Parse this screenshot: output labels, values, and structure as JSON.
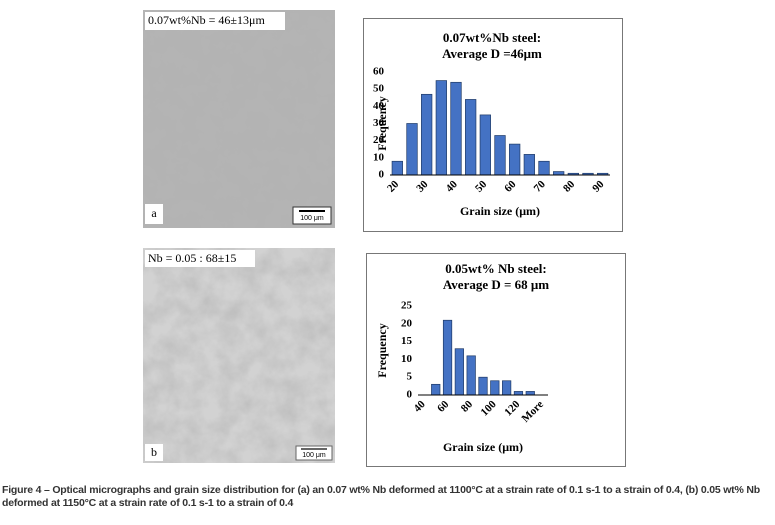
{
  "micrographs": [
    {
      "label": "0.07wt%Nb = 46±13μm",
      "panel": "a",
      "scale": "100 μm"
    },
    {
      "label": "Nb = 0.05 : 68±15",
      "panel": "b",
      "scale": "100 μm"
    }
  ],
  "chart_data": [
    {
      "type": "bar",
      "title": "0.07wt%Nb steel:",
      "subtitle": "Average D =46μm",
      "x_label": "Grain size (μm)",
      "y_label": "Frequency",
      "categories": [
        "20",
        null,
        "30",
        null,
        "40",
        null,
        "50",
        null,
        "60",
        null,
        "70",
        null,
        "80",
        null,
        "90"
      ],
      "values": [
        8,
        30,
        47,
        55,
        54,
        44,
        35,
        23,
        18,
        12,
        8,
        2,
        1,
        1,
        1
      ],
      "color": "#4472c4",
      "ylim": [
        0,
        60
      ],
      "yticks": [
        0,
        10,
        20,
        30,
        40,
        50,
        60
      ],
      "grid": false
    },
    {
      "type": "bar",
      "title": "0.05wt% Nb steel:",
      "subtitle": "Average D = 68 μm",
      "x_label": "Grain size (μm)",
      "y_label": "Frequency",
      "categories": [
        "40",
        null,
        "60",
        null,
        "80",
        null,
        "100",
        null,
        "120",
        null,
        "More"
      ],
      "values": [
        0,
        3,
        21,
        13,
        11,
        5,
        4,
        4,
        1,
        1,
        0
      ],
      "color": "#4472c4",
      "ylim": [
        0,
        25
      ],
      "yticks": [
        0,
        5,
        10,
        15,
        20,
        25
      ],
      "grid": false
    }
  ],
  "caption": "Figure 4 – Optical micrographs and grain size distribution for (a) an 0.07 wt% Nb deformed at 1100°C at a strain rate of 0.1 s-1 to a strain of 0.4, (b) 0.05 wt% Nb deformed at 1150°C at a strain rate of 0.1 s-1 to a strain of 0.4"
}
